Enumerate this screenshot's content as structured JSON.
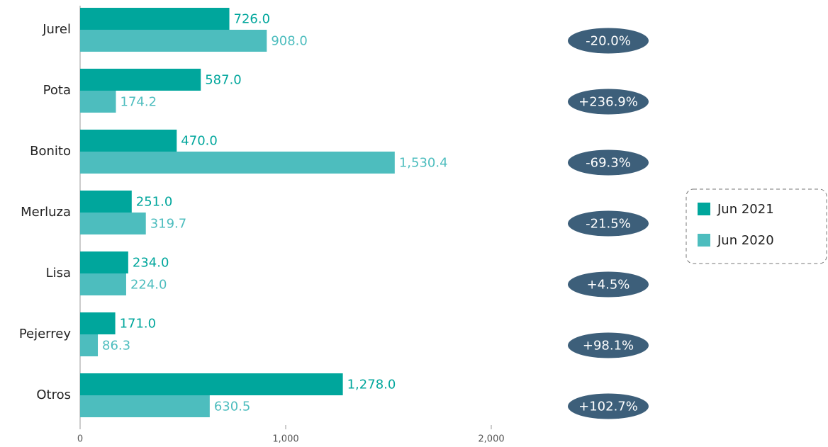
{
  "chart_data": {
    "type": "bar",
    "orientation": "horizontal",
    "categories": [
      "Jurel",
      "Pota",
      "Bonito",
      "Merluza",
      "Lisa",
      "Pejerrey",
      "Otros"
    ],
    "series": [
      {
        "name": "Jun 2021",
        "color": "#00a69c",
        "values": [
          726,
          587,
          470,
          251,
          234,
          171,
          1278
        ],
        "value_labels": [
          "726.0",
          "587.0",
          "470.0",
          "251.0",
          "234.0",
          "171.0",
          "1,278.0"
        ]
      },
      {
        "name": "Jun 2020",
        "color": "#4dbdbe",
        "values": [
          908,
          174.2,
          1530.4,
          319.7,
          224,
          86.3,
          630.5
        ],
        "value_labels": [
          "908.0",
          "174.2",
          "1,530.4",
          "319.7",
          "224.0",
          "86.3",
          "630.5"
        ]
      }
    ],
    "annotations": [
      "-20.0%",
      "+236.9%",
      "-69.3%",
      "-21.5%",
      "+4.5%",
      "+98.1%",
      "+102.7%"
    ],
    "annotation_color": "#3d5f7a",
    "xlim": [
      0,
      2000
    ],
    "xticks": [
      0,
      {
        "value": 1000,
        "label": "1,000"
      },
      {
        "value": 2000,
        "label": "2,000"
      }
    ],
    "legend": "right"
  }
}
